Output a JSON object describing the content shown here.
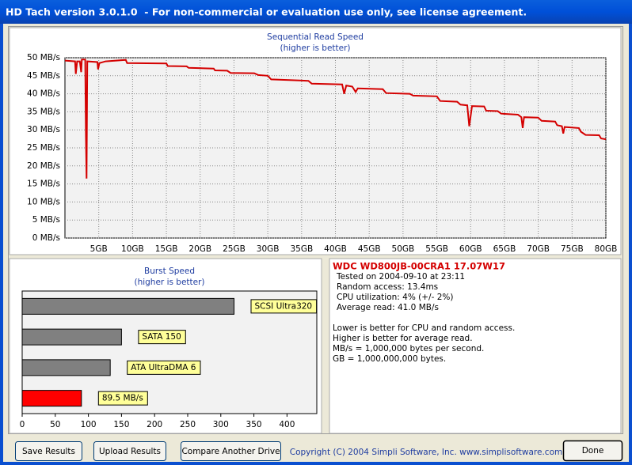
{
  "window_title": "HD Tach version 3.0.1.0  - For non-commercial or evaluation use only, see license agreement.",
  "chart_data": [
    {
      "type": "line",
      "title": "Sequential Read Speed",
      "subtitle": "(higher is better)",
      "x": [
        0,
        1.5,
        1.6,
        1.8,
        2.2,
        2.4,
        2.5,
        3.0,
        3.1,
        3.2,
        3.3,
        4.8,
        4.9,
        5.1,
        6,
        9,
        9.2,
        15,
        15.2,
        18,
        18.3,
        22,
        22.2,
        24,
        24.5,
        28,
        28.6,
        30,
        30.5,
        36,
        36.5,
        41,
        41.3,
        41.6,
        42.5,
        43,
        43.3,
        47,
        47.5,
        51,
        51.5,
        55,
        55.5,
        58,
        58.5,
        59.5,
        59.8,
        60.2,
        62,
        62.3,
        64,
        64.5,
        67,
        67.5,
        67.7,
        67.9,
        70,
        70.5,
        72.5,
        72.8,
        73.5,
        73.7,
        73.9,
        76,
        76.3,
        77,
        79,
        79.3,
        80
      ],
      "series": [
        {
          "color": "#d40000",
          "values": [
            49.2,
            49,
            45.5,
            49,
            49,
            46,
            49.5,
            49.5,
            28,
            16.5,
            49,
            48.8,
            46.8,
            48.5,
            49,
            49.4,
            48.5,
            48.4,
            47.7,
            47.6,
            47.2,
            47,
            46.5,
            46.4,
            45.8,
            45.7,
            45.2,
            45,
            44,
            43.6,
            42.8,
            42.6,
            40,
            42.3,
            42,
            40.5,
            41.5,
            41.3,
            40.2,
            40,
            39.5,
            39.3,
            38,
            37.8,
            37,
            36.8,
            31,
            36.6,
            36.5,
            35.3,
            35.2,
            34.5,
            34.2,
            33.5,
            30.5,
            33.5,
            33.4,
            32.5,
            32.3,
            31.3,
            31,
            29,
            30.8,
            30.5,
            29.5,
            28.6,
            28.5,
            27.6,
            27.4
          ]
        }
      ],
      "xlim": [
        0,
        80
      ],
      "ylim": [
        0,
        50
      ],
      "xticks": [
        {
          "value": 5,
          "label": "5GB"
        },
        {
          "value": 10,
          "label": "10GB"
        },
        {
          "value": 15,
          "label": "15GB"
        },
        {
          "value": 20,
          "label": "20GB"
        },
        {
          "value": 25,
          "label": "25GB"
        },
        {
          "value": 30,
          "label": "30GB"
        },
        {
          "value": 35,
          "label": "35GB"
        },
        {
          "value": 40,
          "label": "40GB"
        },
        {
          "value": 45,
          "label": "45GB"
        },
        {
          "value": 50,
          "label": "50GB"
        },
        {
          "value": 55,
          "label": "55GB"
        },
        {
          "value": 60,
          "label": "60GB"
        },
        {
          "value": 65,
          "label": "65GB"
        },
        {
          "value": 70,
          "label": "70GB"
        },
        {
          "value": 75,
          "label": "75GB"
        },
        {
          "value": 80,
          "label": "80GB"
        }
      ],
      "yticks": [
        {
          "value": 0,
          "label": "0 MB/s"
        },
        {
          "value": 5,
          "label": "5 MB/s"
        },
        {
          "value": 10,
          "label": "10 MB/s"
        },
        {
          "value": 15,
          "label": "15 MB/s"
        },
        {
          "value": 20,
          "label": "20 MB/s"
        },
        {
          "value": 25,
          "label": "25 MB/s"
        },
        {
          "value": 30,
          "label": "30 MB/s"
        },
        {
          "value": 35,
          "label": "35 MB/s"
        },
        {
          "value": 40,
          "label": "40 MB/s"
        },
        {
          "value": 45,
          "label": "45 MB/s"
        },
        {
          "value": 50,
          "label": "50 MB/s"
        }
      ],
      "grid": true
    },
    {
      "type": "bar",
      "orientation": "horizontal",
      "title": "Burst Speed",
      "subtitle": "(higher is better)",
      "categories": [
        "SCSI Ultra320",
        "SATA 150",
        "ATA UltraDMA 6",
        null
      ],
      "values": [
        320,
        150,
        133,
        89.5
      ],
      "value_labels": [
        null,
        null,
        null,
        "89.5 MB/s"
      ],
      "colors": [
        "#808080",
        "#808080",
        "#808080",
        "#ff0000"
      ],
      "xlim": [
        0,
        445
      ],
      "xticks": [
        0,
        50,
        100,
        150,
        200,
        250,
        300,
        350,
        400
      ]
    }
  ],
  "drive_info": {
    "model": "WDC WD800JB-00CRA1 17.07W17",
    "details": [
      "Tested on 2004-09-10 at 23:11",
      "Random access: 13.4ms",
      "CPU utilization: 4% (+/- 2%)",
      "Average read: 41.0 MB/s"
    ],
    "notes": [
      "Lower is better for CPU and random access.",
      "Higher is better for average read.",
      "MB/s = 1,000,000 bytes per second.",
      "GB = 1,000,000,000 bytes."
    ]
  },
  "buttons": [
    "Save Results",
    "Upload Results",
    "Compare Another Drive"
  ],
  "copyright": "Copyright (C) 2004 Simpli Software, Inc. www.simplisoftware.com",
  "done_button": "Done"
}
